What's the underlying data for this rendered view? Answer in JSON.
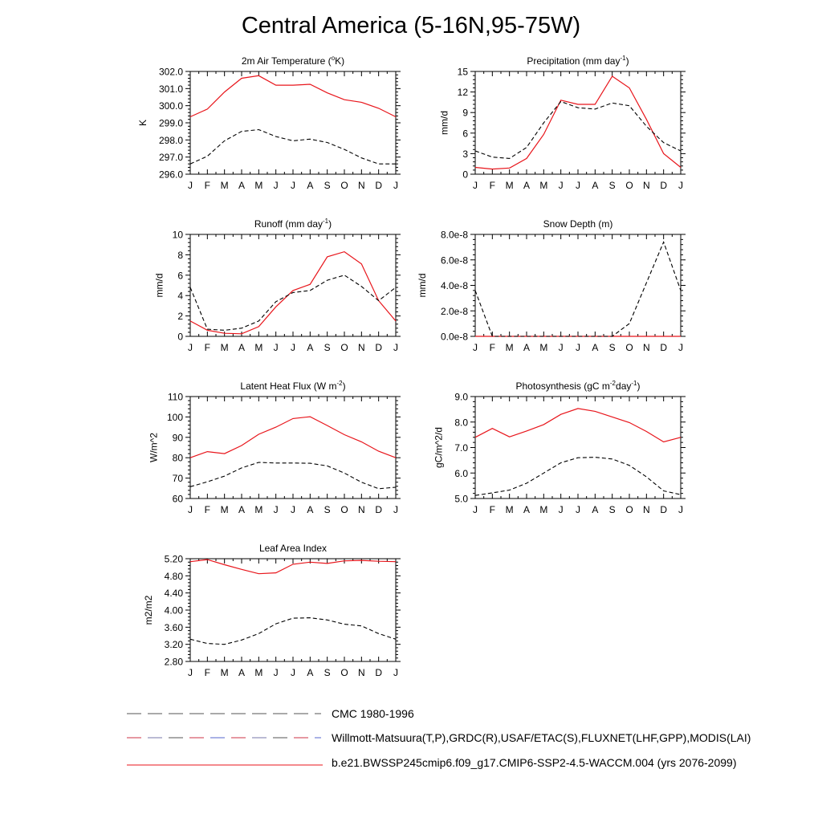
{
  "title": "Central America (5-16N,95-75W)",
  "months": [
    "J",
    "F",
    "M",
    "A",
    "M",
    "J",
    "J",
    "A",
    "S",
    "O",
    "N",
    "D",
    "J"
  ],
  "colors": {
    "model": "#e8151b",
    "obs": "#000000",
    "axis": "#000000"
  },
  "legend": [
    {
      "label": "CMC 1980-1996",
      "style": "dash-gray"
    },
    {
      "label": "Willmott-Matsuura(T,P),GRDC(R),USAF/ETAC(S),FLUXNET(LHF,GPP),MODIS(LAI)",
      "style": "dash-red-blue"
    },
    {
      "label": "b.e21.BWSSP245cmip6.f09_g17.CMIP6-SSP2-4.5-WACCM.004 (yrs 2076-2099)",
      "style": "solid-red"
    }
  ],
  "chart_data": [
    {
      "type": "line",
      "title": "2m Air Temperature (°K)",
      "title_parts": [
        "2m Air Temperature (",
        "o",
        "K)"
      ],
      "ylabel": "K",
      "ylim": [
        296.0,
        302.0
      ],
      "yticks": [
        "296.0",
        "297.0",
        "298.0",
        "299.0",
        "300.0",
        "301.0",
        "302.0"
      ],
      "series": [
        {
          "name": "model",
          "values": [
            299.35,
            299.8,
            300.8,
            301.6,
            301.75,
            301.2,
            301.2,
            301.25,
            300.75,
            300.35,
            300.2,
            299.85,
            299.35
          ]
        },
        {
          "name": "obs",
          "values": [
            296.6,
            297.05,
            297.95,
            298.5,
            298.6,
            298.2,
            297.95,
            298.05,
            297.85,
            297.45,
            296.95,
            296.6,
            296.6
          ]
        }
      ]
    },
    {
      "type": "line",
      "title": "Precipitation (mm day-1)",
      "title_parts": [
        "Precipitation (mm day",
        "-1",
        ")"
      ],
      "ylabel": "mm/d",
      "ylim": [
        0,
        15
      ],
      "yticks": [
        "0",
        "3",
        "6",
        "9",
        "12",
        "15"
      ],
      "series": [
        {
          "name": "model",
          "values": [
            1.0,
            0.75,
            0.9,
            2.3,
            5.8,
            10.8,
            10.2,
            10.2,
            14.3,
            12.6,
            8.0,
            3.0,
            1.0
          ]
        },
        {
          "name": "obs",
          "values": [
            3.4,
            2.5,
            2.3,
            3.9,
            7.5,
            10.6,
            9.7,
            9.5,
            10.4,
            10.0,
            7.0,
            4.6,
            3.4
          ]
        }
      ]
    },
    {
      "type": "line",
      "title": "Runoff (mm day-1)",
      "title_parts": [
        "Runoff (mm day",
        "-1",
        ")"
      ],
      "ylabel": "mm/d",
      "ylim": [
        0,
        10
      ],
      "yticks": [
        "0",
        "2",
        "4",
        "6",
        "8",
        "10"
      ],
      "series": [
        {
          "name": "model",
          "values": [
            1.5,
            0.6,
            0.3,
            0.25,
            0.95,
            2.9,
            4.5,
            5.1,
            7.8,
            8.3,
            7.1,
            3.5,
            1.5
          ]
        },
        {
          "name": "obs",
          "values": [
            4.8,
            0.7,
            0.6,
            0.8,
            1.5,
            3.4,
            4.3,
            4.5,
            5.5,
            6.0,
            4.9,
            3.5,
            4.8
          ]
        }
      ]
    },
    {
      "type": "line",
      "title": "Snow Depth (m)",
      "title_parts": [
        "Snow Depth (m)"
      ],
      "ylabel": "mm/d",
      "ylim": [
        0,
        8e-08
      ],
      "yticks": [
        "0.0e-8",
        "2.0e-8",
        "4.0e-8",
        "6.0e-8",
        "8.0e-8"
      ],
      "series": [
        {
          "name": "model",
          "values": [
            0,
            0,
            0,
            0,
            0,
            0,
            0,
            0,
            0,
            0,
            0,
            0,
            0
          ]
        },
        {
          "name": "obs",
          "values": [
            3.6e-08,
            0,
            0,
            0,
            0,
            0,
            0,
            0,
            0,
            1e-08,
            4.2e-08,
            7.4e-08,
            3.6e-08
          ]
        }
      ]
    },
    {
      "type": "line",
      "title": "Latent Heat Flux (W m-2)",
      "title_parts": [
        "Latent Heat Flux (W m",
        "-2",
        ")"
      ],
      "ylabel": "W/m^2",
      "ylim": [
        60,
        110
      ],
      "yticks": [
        "60",
        "70",
        "80",
        "90",
        "100",
        "110"
      ],
      "series": [
        {
          "name": "model",
          "values": [
            80,
            83,
            82,
            86,
            91.5,
            95,
            99.2,
            100.1,
            95.8,
            91.3,
            87.8,
            83.2,
            80
          ]
        },
        {
          "name": "obs",
          "values": [
            65.8,
            68.2,
            71,
            75,
            77.7,
            77.4,
            77.4,
            77.3,
            76,
            72.5,
            68,
            64.8,
            65.5
          ]
        }
      ]
    },
    {
      "type": "line",
      "title": "Photosynthesis (gC m-2day-1)",
      "title_parts": [
        "Photosynthesis (gC m",
        "-2",
        "day",
        "-1",
        ")"
      ],
      "ylabel": "gC/m^2/d",
      "ylim": [
        5.0,
        9.0
      ],
      "yticks": [
        "5.0",
        "6.0",
        "7.0",
        "8.0",
        "9.0"
      ],
      "series": [
        {
          "name": "model",
          "values": [
            7.4,
            7.75,
            7.42,
            7.65,
            7.9,
            8.3,
            8.53,
            8.42,
            8.2,
            7.98,
            7.63,
            7.22,
            7.4
          ]
        },
        {
          "name": "obs",
          "values": [
            5.12,
            5.22,
            5.33,
            5.6,
            6.0,
            6.4,
            6.6,
            6.62,
            6.55,
            6.3,
            5.85,
            5.3,
            5.15
          ]
        }
      ]
    },
    {
      "type": "line",
      "title": "Leaf Area Index",
      "title_parts": [
        "Leaf Area Index"
      ],
      "ylabel": "m2/m2",
      "ylim": [
        2.8,
        5.2
      ],
      "yticks": [
        "2.80",
        "3.20",
        "3.60",
        "4.00",
        "4.40",
        "4.80",
        "5.20"
      ],
      "series": [
        {
          "name": "model",
          "values": [
            5.13,
            5.18,
            5.06,
            4.95,
            4.85,
            4.87,
            5.07,
            5.12,
            5.09,
            5.15,
            5.16,
            5.14,
            5.13
          ]
        },
        {
          "name": "obs",
          "values": [
            3.32,
            3.22,
            3.2,
            3.3,
            3.45,
            3.68,
            3.81,
            3.82,
            3.77,
            3.67,
            3.63,
            3.45,
            3.32
          ]
        }
      ]
    }
  ]
}
